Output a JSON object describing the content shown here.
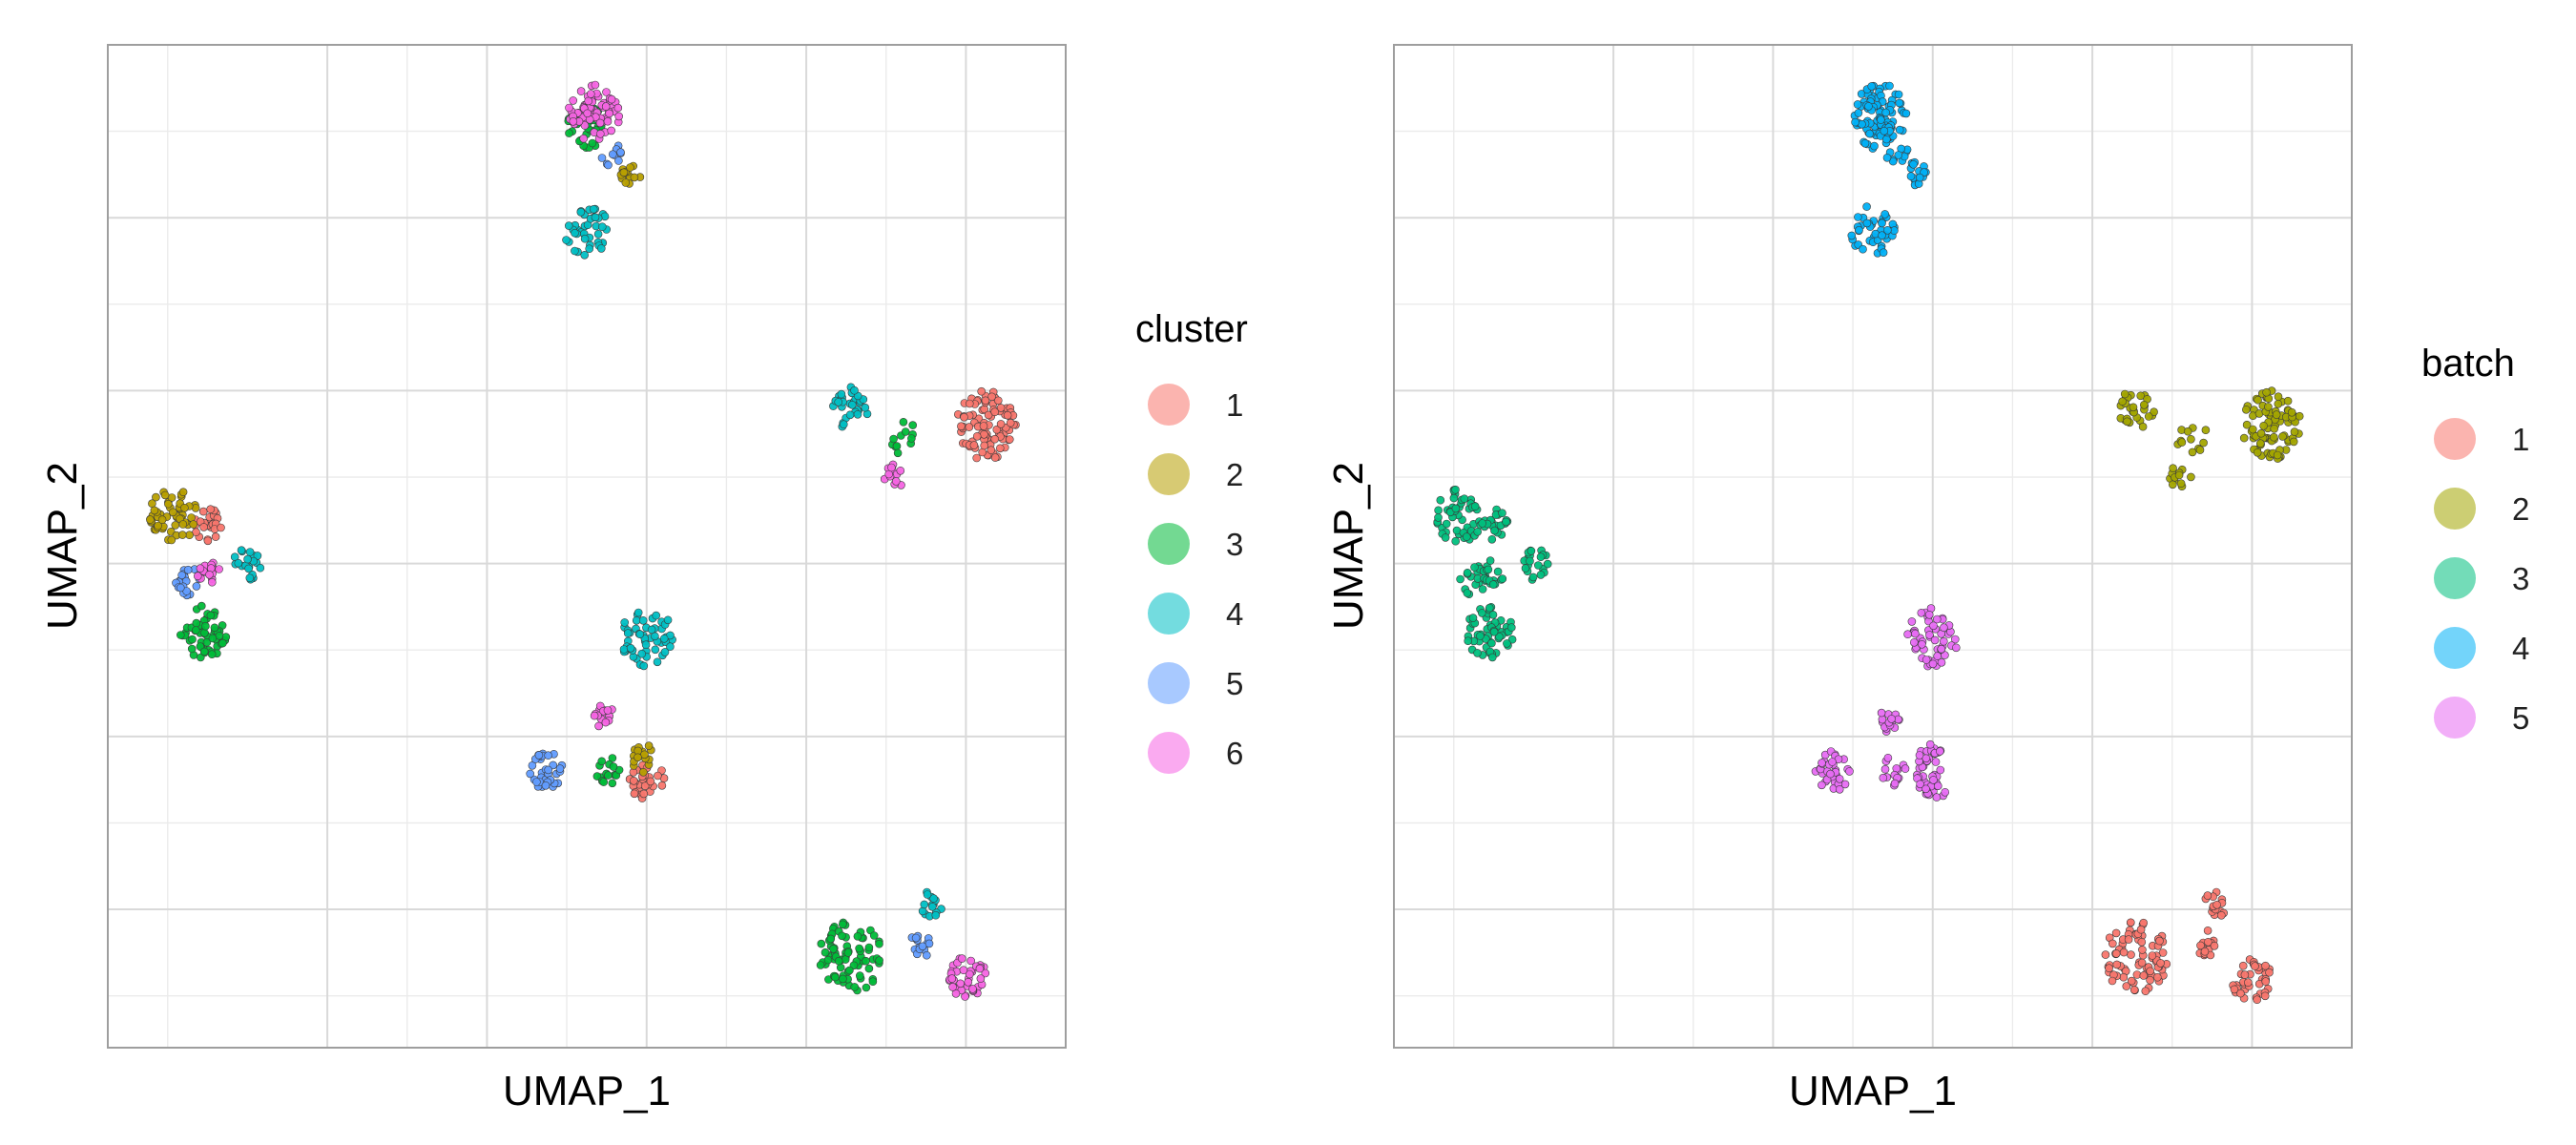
{
  "chart_data": [
    {
      "type": "scatter",
      "title": "",
      "xlabel": "UMAP_1",
      "ylabel": "UMAP_2",
      "xlim": [
        0,
        12
      ],
      "ylim": [
        0,
        11.6
      ],
      "x_ticks_major": [
        2.75,
        4.75,
        6.75,
        8.75,
        10.75
      ],
      "x_ticks_minor": [
        0.75,
        3.75,
        5.75,
        7.75,
        9.75
      ],
      "y_ticks_major": [
        1.6,
        3.6,
        5.6,
        7.6,
        9.6
      ],
      "y_ticks_minor": [
        0.6,
        2.6,
        4.6,
        6.6,
        8.6,
        10.6
      ],
      "tick_labels_shown": false,
      "grid": true,
      "legend": {
        "title": "cluster",
        "position": "right",
        "items": [
          {
            "label": "1",
            "color": "#F8766D"
          },
          {
            "label": "2",
            "color": "#B79F00"
          },
          {
            "label": "3",
            "color": "#00BA38"
          },
          {
            "label": "4",
            "color": "#00BFC4"
          },
          {
            "label": "5",
            "color": "#619CFF"
          },
          {
            "label": "6",
            "color": "#F564E3"
          }
        ]
      },
      "series": [
        {
          "name": "1",
          "color": "#F8766D",
          "clusters": [
            {
              "x": 11.0,
              "y": 7.2,
              "r": 0.38,
              "n": 90
            },
            {
              "x": 1.25,
              "y": 6.05,
              "r": 0.18,
              "n": 25
            },
            {
              "x": 6.75,
              "y": 3.1,
              "r": 0.22,
              "n": 30
            }
          ]
        },
        {
          "name": "2",
          "color": "#B79F00",
          "clusters": [
            {
              "x": 0.82,
              "y": 6.15,
              "r": 0.3,
              "n": 55
            },
            {
              "x": 6.55,
              "y": 10.1,
              "r": 0.14,
              "n": 15
            },
            {
              "x": 6.72,
              "y": 3.35,
              "r": 0.16,
              "n": 18
            }
          ]
        },
        {
          "name": "3",
          "color": "#00BA38",
          "clusters": [
            {
              "x": 1.2,
              "y": 4.8,
              "r": 0.3,
              "n": 55
            },
            {
              "x": 6.0,
              "y": 10.65,
              "r": 0.25,
              "n": 35
            },
            {
              "x": 9.3,
              "y": 1.05,
              "r": 0.4,
              "n": 80
            },
            {
              "x": 6.25,
              "y": 3.2,
              "r": 0.16,
              "n": 15
            },
            {
              "x": 10.0,
              "y": 7.05,
              "r": 0.2,
              "n": 12
            }
          ]
        },
        {
          "name": "4",
          "color": "#00BFC4",
          "clusters": [
            {
              "x": 6.0,
              "y": 9.45,
              "r": 0.28,
              "n": 40
            },
            {
              "x": 6.75,
              "y": 4.75,
              "r": 0.33,
              "n": 55
            },
            {
              "x": 9.3,
              "y": 7.4,
              "r": 0.23,
              "n": 30
            },
            {
              "x": 1.75,
              "y": 5.6,
              "r": 0.18,
              "n": 22
            },
            {
              "x": 10.3,
              "y": 1.65,
              "r": 0.15,
              "n": 15
            }
          ]
        },
        {
          "name": "5",
          "color": "#619CFF",
          "clusters": [
            {
              "x": 5.5,
              "y": 3.2,
              "r": 0.22,
              "n": 35
            },
            {
              "x": 1.0,
              "y": 5.4,
              "r": 0.17,
              "n": 20
            },
            {
              "x": 10.2,
              "y": 1.2,
              "r": 0.15,
              "n": 15
            },
            {
              "x": 6.3,
              "y": 10.35,
              "r": 0.14,
              "n": 10
            }
          ]
        },
        {
          "name": "6",
          "color": "#F564E3",
          "clusters": [
            {
              "x": 6.1,
              "y": 10.8,
              "r": 0.33,
              "n": 70
            },
            {
              "x": 10.75,
              "y": 0.8,
              "r": 0.26,
              "n": 40
            },
            {
              "x": 9.85,
              "y": 6.6,
              "r": 0.14,
              "n": 12
            },
            {
              "x": 6.2,
              "y": 3.8,
              "r": 0.16,
              "n": 15
            },
            {
              "x": 1.25,
              "y": 5.5,
              "r": 0.15,
              "n": 15
            }
          ]
        }
      ]
    },
    {
      "type": "scatter",
      "title": "",
      "xlabel": "UMAP_1",
      "ylabel": "UMAP_2",
      "xlim": [
        0,
        12
      ],
      "ylim": [
        0,
        11.6
      ],
      "x_ticks_major": [
        2.75,
        4.75,
        6.75,
        8.75,
        10.75
      ],
      "x_ticks_minor": [
        0.75,
        3.75,
        5.75,
        7.75,
        9.75
      ],
      "y_ticks_major": [
        1.6,
        3.6,
        5.6,
        7.6,
        9.6
      ],
      "y_ticks_minor": [
        0.6,
        2.6,
        4.6,
        6.6,
        8.6,
        10.6
      ],
      "tick_labels_shown": false,
      "grid": true,
      "legend": {
        "title": "batch",
        "position": "right",
        "items": [
          {
            "label": "1",
            "color": "#F8766D"
          },
          {
            "label": "2",
            "color": "#A3A500"
          },
          {
            "label": "3",
            "color": "#00BF7D"
          },
          {
            "label": "4",
            "color": "#00B0F6"
          },
          {
            "label": "5",
            "color": "#E76BF3"
          }
        ]
      },
      "series": [
        {
          "name": "1",
          "color": "#F8766D",
          "clusters": [
            {
              "x": 9.3,
              "y": 1.05,
              "r": 0.4,
              "n": 80
            },
            {
              "x": 10.75,
              "y": 0.8,
              "r": 0.26,
              "n": 40
            },
            {
              "x": 10.3,
              "y": 1.65,
              "r": 0.15,
              "n": 15
            },
            {
              "x": 10.2,
              "y": 1.2,
              "r": 0.15,
              "n": 15
            }
          ]
        },
        {
          "name": "2",
          "color": "#A3A500",
          "clusters": [
            {
              "x": 11.0,
              "y": 7.2,
              "r": 0.38,
              "n": 90
            },
            {
              "x": 9.3,
              "y": 7.4,
              "r": 0.23,
              "n": 30
            },
            {
              "x": 10.0,
              "y": 7.05,
              "r": 0.2,
              "n": 12
            },
            {
              "x": 9.85,
              "y": 6.6,
              "r": 0.14,
              "n": 12
            }
          ]
        },
        {
          "name": "3",
          "color": "#00BF7D",
          "clusters": [
            {
              "x": 0.82,
              "y": 6.15,
              "r": 0.3,
              "n": 55
            },
            {
              "x": 1.2,
              "y": 4.8,
              "r": 0.3,
              "n": 55
            },
            {
              "x": 1.25,
              "y": 6.05,
              "r": 0.18,
              "n": 25
            },
            {
              "x": 1.75,
              "y": 5.6,
              "r": 0.18,
              "n": 22
            },
            {
              "x": 1.0,
              "y": 5.4,
              "r": 0.17,
              "n": 20
            },
            {
              "x": 1.25,
              "y": 5.5,
              "r": 0.15,
              "n": 15
            }
          ]
        },
        {
          "name": "4",
          "color": "#00B0F6",
          "clusters": [
            {
              "x": 6.1,
              "y": 10.8,
              "r": 0.33,
              "n": 70
            },
            {
              "x": 6.0,
              "y": 10.65,
              "r": 0.25,
              "n": 35
            },
            {
              "x": 6.0,
              "y": 9.45,
              "r": 0.28,
              "n": 40
            },
            {
              "x": 6.55,
              "y": 10.1,
              "r": 0.14,
              "n": 15
            },
            {
              "x": 6.3,
              "y": 10.35,
              "r": 0.14,
              "n": 10
            }
          ]
        },
        {
          "name": "5",
          "color": "#E76BF3",
          "clusters": [
            {
              "x": 6.75,
              "y": 4.75,
              "r": 0.33,
              "n": 55
            },
            {
              "x": 5.5,
              "y": 3.2,
              "r": 0.22,
              "n": 35
            },
            {
              "x": 6.75,
              "y": 3.1,
              "r": 0.22,
              "n": 30
            },
            {
              "x": 6.72,
              "y": 3.35,
              "r": 0.16,
              "n": 18
            },
            {
              "x": 6.25,
              "y": 3.2,
              "r": 0.16,
              "n": 15
            },
            {
              "x": 6.2,
              "y": 3.8,
              "r": 0.16,
              "n": 15
            }
          ]
        }
      ]
    }
  ]
}
